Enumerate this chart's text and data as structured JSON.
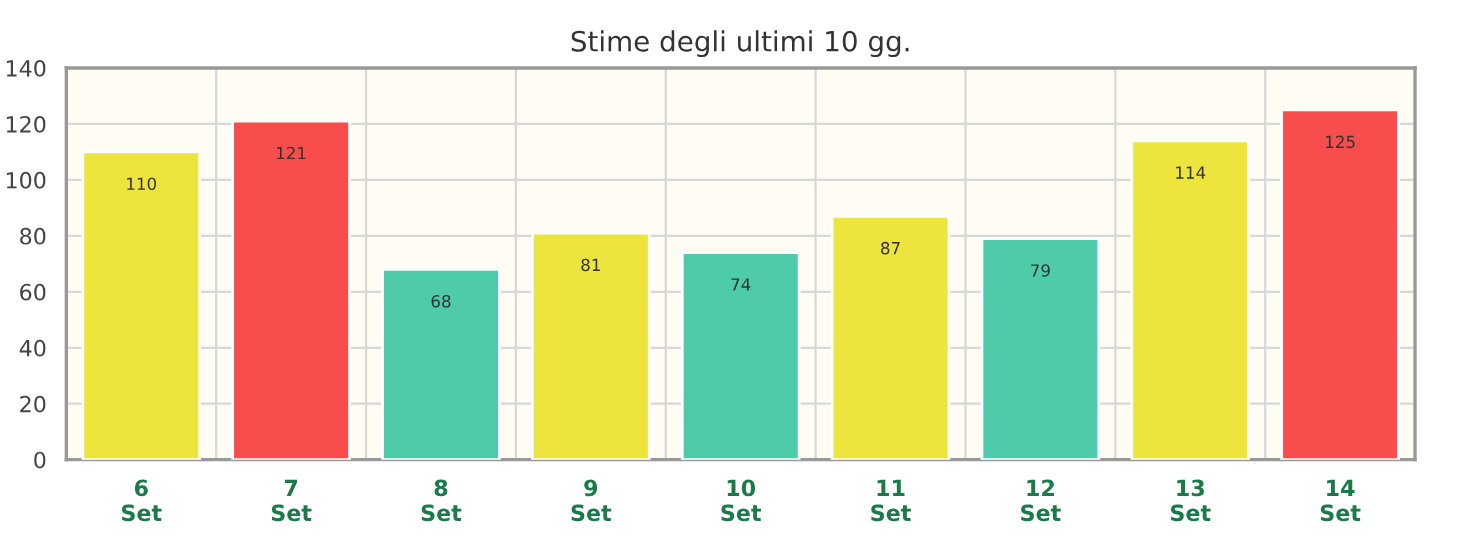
{
  "chart_data": {
    "type": "bar",
    "title": "Stime degli ultimi 10 gg.",
    "categories": [
      "6\nSet",
      "7\nSet",
      "8\nSet",
      "9\nSet",
      "10\nSet",
      "11\nSet",
      "12\nSet",
      "13\nSet",
      "14\nSet"
    ],
    "values": [
      110,
      121,
      68,
      81,
      74,
      87,
      79,
      114,
      125
    ],
    "colors": [
      "#ede43d",
      "#f84d4d",
      "#4ecba9",
      "#ede43d",
      "#4ecba9",
      "#ede43d",
      "#4ecba9",
      "#ede43d",
      "#f84d4d"
    ],
    "ylim": [
      0,
      140
    ],
    "yticks": [
      0,
      20,
      40,
      60,
      80,
      100,
      120,
      140
    ],
    "grid": true,
    "data_labels": true
  }
}
